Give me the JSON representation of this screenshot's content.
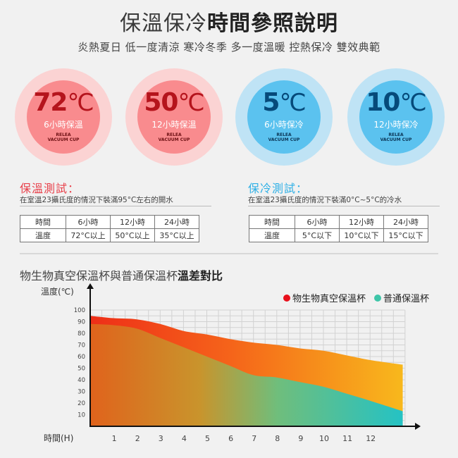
{
  "header": {
    "title_light": "保溫保冷",
    "title_bold": "時間參照說明",
    "subtitle": "炎熱夏日 低一度清涼 寒冷冬季 多一度溫暖 控熱保冷 雙效典範"
  },
  "badges": [
    {
      "temp": "72",
      "unit": "℃",
      "hours": "6小時保溫",
      "brand1": "RELEA",
      "brand2": "VACUUM CUP"
    },
    {
      "temp": "50",
      "unit": "℃",
      "hours": "12小時保溫",
      "brand1": "RELEA",
      "brand2": "VACUUM CUP"
    },
    {
      "temp": "5",
      "unit": "℃",
      "hours": "6小時保冷",
      "brand1": "RELEA",
      "brand2": "VACUUM CUP"
    },
    {
      "temp": "10",
      "unit": "℃",
      "hours": "12小時保冷",
      "brand1": "RELEA",
      "brand2": "VACUUM CUP"
    }
  ],
  "colors": {
    "warm_inner": "#f98b8e",
    "cool_inner": "#5bc2ef",
    "hot_title": "#e8404a",
    "cold_title": "#2fb0e6"
  },
  "warm_test": {
    "title": "保溫測試：",
    "desc": "在室溫23攝氏度的情況下裝滿95°C左右的開水",
    "header": [
      "時間",
      "6小時",
      "12小時",
      "24小時"
    ],
    "row": [
      "溫度",
      "72°C以上",
      "50°C以上",
      "35°C以上"
    ]
  },
  "cold_test": {
    "title": "保冷測試：",
    "desc": "在室溫23攝氏度的情況下裝滿0°C~5°C的冷水",
    "header": [
      "時間",
      "6小時",
      "12小時",
      "24小時"
    ],
    "row": [
      "溫度",
      "5°C以下",
      "10°C以下",
      "15°C以下"
    ]
  },
  "chart_section": {
    "title_light": "物生物真空保溫杯與普通保溫杯",
    "title_bold": "溫差對比"
  },
  "chart_data": {
    "type": "area",
    "ylabel": "溫度(℃)",
    "xlabel": "時間(H)",
    "ylim": [
      0,
      100
    ],
    "yticks": [
      10,
      20,
      30,
      40,
      50,
      60,
      70,
      80,
      90,
      100
    ],
    "xticks": [
      1,
      2,
      3,
      4,
      5,
      6,
      7,
      8,
      9,
      10,
      11,
      12
    ],
    "xlim": [
      0,
      13.5
    ],
    "grid": true,
    "legend_position": "top-right",
    "x": [
      0,
      1,
      2,
      3,
      4,
      5,
      6,
      7,
      8,
      9,
      10,
      11,
      12,
      13.4
    ],
    "series": [
      {
        "name": "物生物真空保溫杯",
        "color": "#e8101c",
        "values": [
          95,
          93,
          92,
          88,
          82,
          79,
          75,
          72,
          70,
          67,
          65,
          61,
          57,
          53
        ]
      },
      {
        "name": "普通保溫杯",
        "color": "#3ec5a8",
        "values": [
          88,
          87,
          84,
          76,
          68,
          60,
          52,
          44,
          42,
          38,
          34,
          28,
          22,
          13
        ]
      }
    ]
  }
}
